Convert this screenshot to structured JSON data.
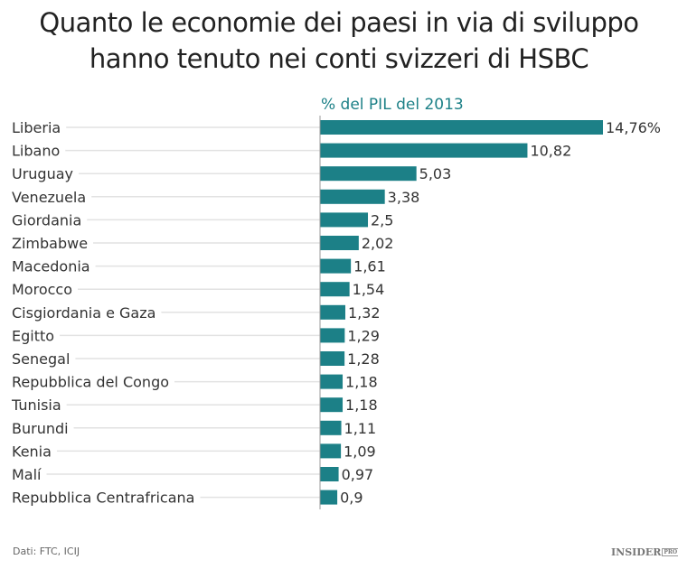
{
  "chart_data": {
    "type": "bar",
    "orientation": "horizontal",
    "title": "Quanto le economie dei paesi in via di sviluppo hanno tenuto nei conti svizzeri di HSBC",
    "title_lines": [
      "Quanto le economie dei paesi in via di sviluppo",
      "hanno tenuto nei conti svizzeri di HSBC"
    ],
    "subtitle": "% del PIL del 2013",
    "categories": [
      "Liberia",
      "Libano",
      "Uruguay",
      "Venezuela",
      "Giordania",
      "Zimbabwe",
      "Macedonia",
      "Morocco",
      "Cisgiordania e Gaza",
      "Egitto",
      "Senegal",
      "Repubblica del Congo",
      "Tunisia",
      "Burundi",
      "Kenia",
      "Malí",
      "Repubblica Centrafricana"
    ],
    "values": [
      14.76,
      10.82,
      5.03,
      3.38,
      2.5,
      2.02,
      1.61,
      1.54,
      1.32,
      1.29,
      1.28,
      1.18,
      1.18,
      1.11,
      1.09,
      0.97,
      0.9
    ],
    "value_labels": [
      "14,76%",
      "10,82",
      "5,03",
      "3,38",
      "2,5",
      "2,02",
      "1,61",
      "1,54",
      "1,32",
      "1,29",
      "1,28",
      "1,18",
      "1,18",
      "1,11",
      "1,09",
      "0,97",
      "0,9"
    ],
    "xlim": [
      0,
      14.76
    ],
    "bar_color": "#1c8087",
    "grid": false
  },
  "footer": {
    "source": "Dati: FTC, ICIJ",
    "logo": "INSIDER",
    "logo_badge": "PRO"
  }
}
